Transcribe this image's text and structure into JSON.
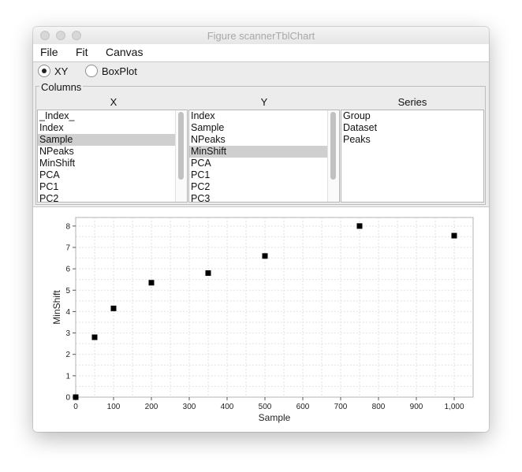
{
  "window": {
    "title": "Figure scannerTblChart"
  },
  "menu": {
    "items": [
      "File",
      "Fit",
      "Canvas"
    ]
  },
  "chart_type": {
    "options": [
      {
        "label": "XY",
        "selected": true
      },
      {
        "label": "BoxPlot",
        "selected": false
      }
    ]
  },
  "columns": {
    "legend": "Columns",
    "x": {
      "header": "X",
      "items": [
        "_Index_",
        "Index",
        "Sample",
        "NPeaks",
        "MinShift",
        "PCA",
        "PC1",
        "PC2"
      ],
      "selected": "Sample"
    },
    "y": {
      "header": "Y",
      "items": [
        "Index",
        "Sample",
        "NPeaks",
        "MinShift",
        "PCA",
        "PC1",
        "PC2",
        "PC3"
      ],
      "selected": "MinShift"
    },
    "series": {
      "header": "Series",
      "items": [
        "Group",
        "Dataset",
        "Peaks"
      ]
    }
  },
  "chart_data": {
    "type": "scatter",
    "title": "",
    "xlabel": "Sample",
    "ylabel": "MinShift",
    "xlim": [
      0,
      1050
    ],
    "ylim": [
      0,
      8.4
    ],
    "xticks": [
      "0",
      "100",
      "200",
      "300",
      "400",
      "500",
      "600",
      "700",
      "800",
      "900",
      "1,000"
    ],
    "yticks": [
      "0",
      "1",
      "2",
      "3",
      "4",
      "5",
      "6",
      "7",
      "8"
    ],
    "grid": true,
    "marker_color": "#000000",
    "x": [
      0,
      50,
      100,
      200,
      350,
      500,
      750,
      1000
    ],
    "y": [
      0.0,
      2.8,
      4.15,
      5.35,
      5.8,
      6.6,
      8.0,
      7.55
    ]
  }
}
